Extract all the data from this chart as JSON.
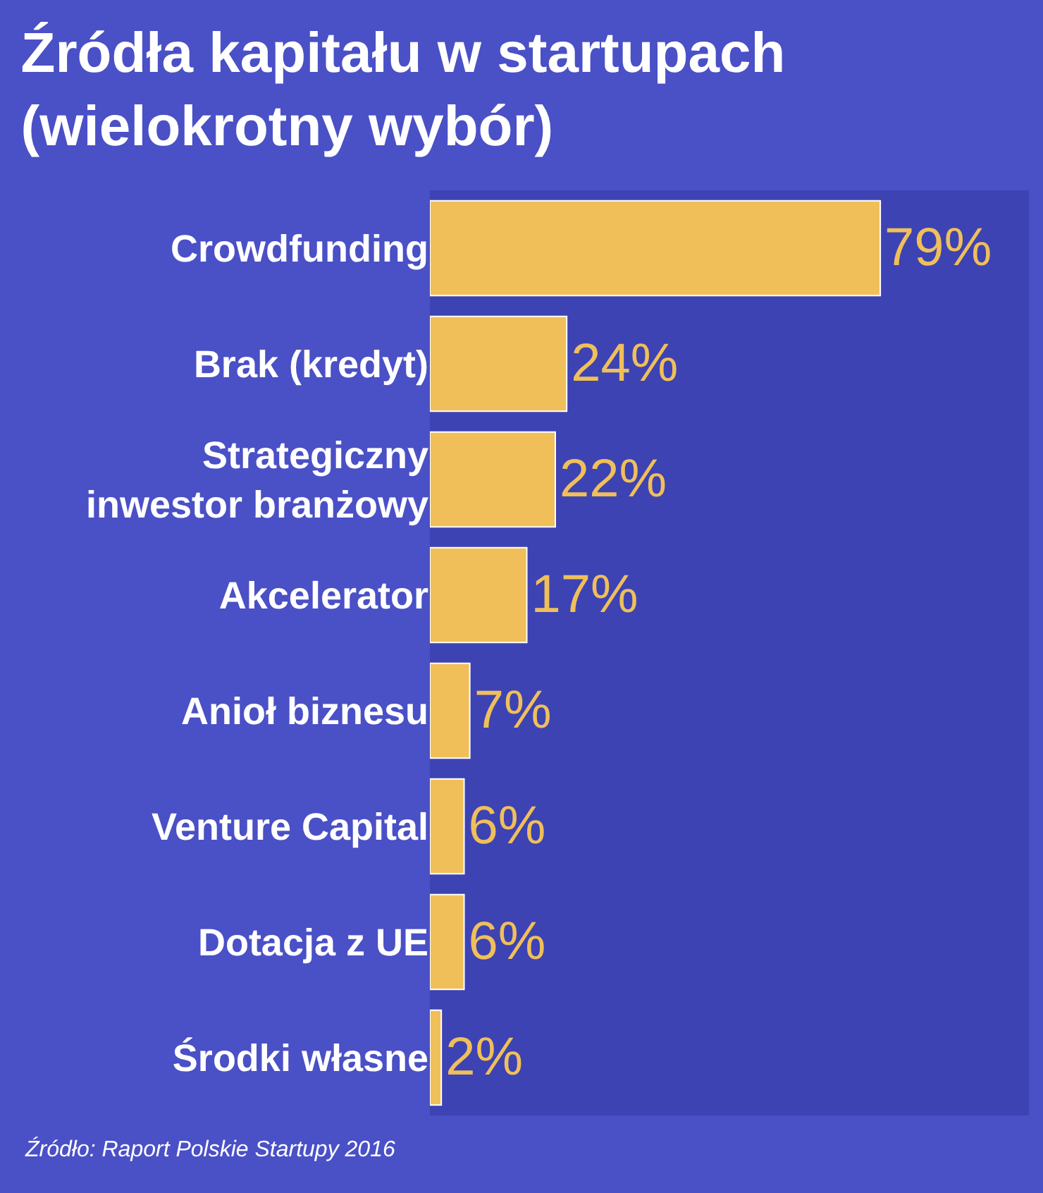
{
  "chart_data": {
    "type": "bar",
    "orientation": "horizontal",
    "title": "Źródła kapitału w startupach\n(wielokrotny wybór)",
    "categories": [
      "Crowdfunding",
      "Brak (kredyt)",
      "Strategiczny\ninwestor branżowy",
      "Akcelerator",
      "Anioł biznesu",
      "Venture Capital",
      "Dotacja z UE",
      "Środki własne"
    ],
    "values": [
      79,
      24,
      22,
      17,
      7,
      6,
      6,
      2
    ],
    "value_labels": [
      "79%",
      "24%",
      "22%",
      "17%",
      "7%",
      "6%",
      "6%",
      "2%"
    ],
    "color": "#f0bf5a",
    "annotations": [
      "Źródło: Raport Polskie Startupy 2016"
    ]
  }
}
